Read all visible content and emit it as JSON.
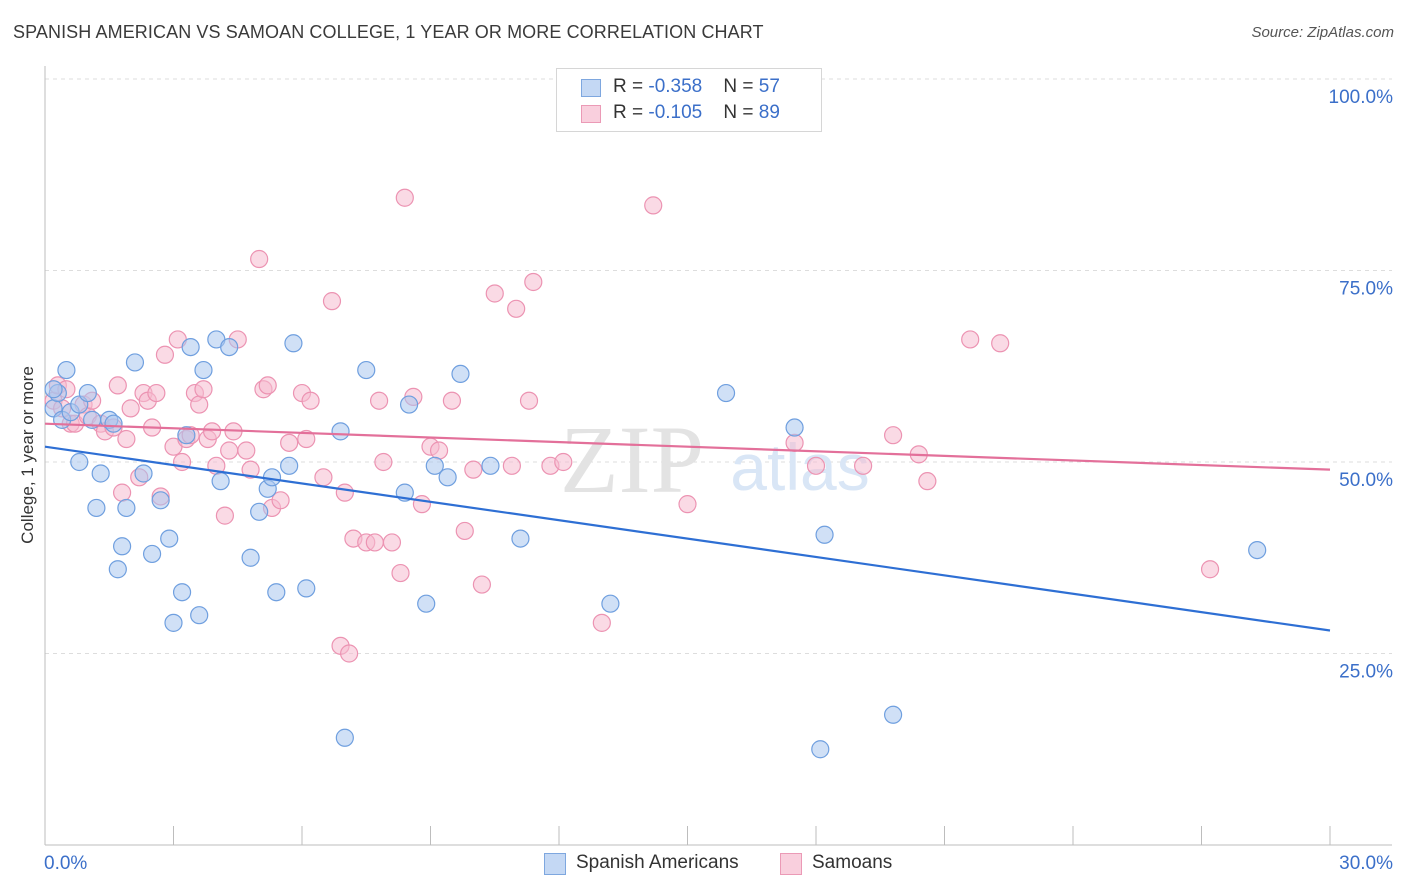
{
  "header": {
    "title": "SPANISH AMERICAN VS SAMOAN COLLEGE, 1 YEAR OR MORE CORRELATION CHART",
    "source": "Source: ZipAtlas.com"
  },
  "watermark": {
    "zip": "ZIP",
    "atlas": "atlas"
  },
  "legend": {
    "rows": [
      {
        "r_label": "R = ",
        "r_value": "-0.358",
        "n_label": "N = ",
        "n_value": "57"
      },
      {
        "r_label": "R = ",
        "r_value": "-0.105",
        "n_label": "N = ",
        "n_value": "89"
      }
    ]
  },
  "bottom_legend": {
    "series1": "Spanish Americans",
    "series2": "Samoans"
  },
  "colors": {
    "blue_fill": "#a9c6ee",
    "blue_stroke": "#6f9fdf",
    "blue_line": "#2e6fd4",
    "pink_fill": "#f6bcd0",
    "pink_stroke": "#ec93b2",
    "pink_line": "#e3709a",
    "axis_text": "#3b6fc9",
    "grid": "#dddddd"
  },
  "chart_data": {
    "type": "scatter",
    "title": "SPANISH AMERICAN VS SAMOAN COLLEGE, 1 YEAR OR MORE CORRELATION CHART",
    "xlabel": "",
    "ylabel": "College, 1 year or more",
    "xlim": [
      0,
      30
    ],
    "ylim": [
      0,
      105
    ],
    "x_tick_labels": [
      "0.0%",
      "30.0%"
    ],
    "y_ticks": [
      25,
      50,
      75,
      100
    ],
    "y_tick_labels": [
      "25.0%",
      "50.0%",
      "75.0%",
      "100.0%"
    ],
    "legend_position": "top-center",
    "series": [
      {
        "name": "Spanish Americans",
        "r": -0.358,
        "n": 57,
        "trend": {
          "x": [
            0,
            30
          ],
          "y": [
            52.0,
            28.0
          ]
        },
        "points": [
          [
            0.2,
            57.0
          ],
          [
            0.3,
            59.0
          ],
          [
            0.4,
            55.5
          ],
          [
            0.5,
            62.0
          ],
          [
            0.6,
            56.5
          ],
          [
            0.8,
            57.5
          ],
          [
            0.8,
            50.0
          ],
          [
            1.0,
            59.0
          ],
          [
            1.1,
            55.5
          ],
          [
            1.2,
            44.0
          ],
          [
            1.3,
            48.5
          ],
          [
            1.5,
            55.5
          ],
          [
            1.6,
            55.0
          ],
          [
            1.7,
            36.0
          ],
          [
            1.8,
            39.0
          ],
          [
            1.9,
            44.0
          ],
          [
            2.1,
            63.0
          ],
          [
            2.3,
            48.5
          ],
          [
            2.5,
            38.0
          ],
          [
            2.7,
            45.0
          ],
          [
            2.9,
            40.0
          ],
          [
            3.0,
            29.0
          ],
          [
            3.2,
            33.0
          ],
          [
            3.3,
            53.5
          ],
          [
            3.4,
            65.0
          ],
          [
            3.6,
            30.0
          ],
          [
            3.7,
            62.0
          ],
          [
            4.0,
            66.0
          ],
          [
            4.1,
            47.5
          ],
          [
            4.3,
            65.0
          ],
          [
            4.8,
            37.5
          ],
          [
            5.0,
            43.5
          ],
          [
            5.2,
            46.5
          ],
          [
            5.3,
            48.0
          ],
          [
            5.4,
            33.0
          ],
          [
            5.7,
            49.5
          ],
          [
            5.8,
            65.5
          ],
          [
            6.1,
            33.5
          ],
          [
            6.9,
            54.0
          ],
          [
            7.0,
            14.0
          ],
          [
            7.5,
            62.0
          ],
          [
            8.4,
            46.0
          ],
          [
            8.5,
            57.5
          ],
          [
            8.9,
            31.5
          ],
          [
            9.1,
            49.5
          ],
          [
            9.4,
            48.0
          ],
          [
            9.7,
            61.5
          ],
          [
            10.4,
            49.5
          ],
          [
            11.1,
            40.0
          ],
          [
            13.2,
            31.5
          ],
          [
            15.9,
            59.0
          ],
          [
            17.5,
            54.5
          ],
          [
            18.1,
            12.5
          ],
          [
            18.2,
            40.5
          ],
          [
            19.8,
            17.0
          ],
          [
            28.3,
            38.5
          ],
          [
            0.2,
            59.5
          ]
        ]
      },
      {
        "name": "Samoans",
        "r": -0.105,
        "n": 89,
        "trend": {
          "x": [
            0,
            30
          ],
          "y": [
            55.0,
            49.0
          ]
        },
        "points": [
          [
            0.2,
            58.0
          ],
          [
            0.3,
            60.0
          ],
          [
            0.4,
            57.0
          ],
          [
            0.5,
            59.5
          ],
          [
            0.6,
            55.0
          ],
          [
            0.7,
            55.0
          ],
          [
            0.9,
            57.5
          ],
          [
            1.0,
            56.0
          ],
          [
            1.1,
            58.0
          ],
          [
            1.3,
            55.0
          ],
          [
            1.4,
            54.0
          ],
          [
            1.6,
            54.5
          ],
          [
            1.7,
            60.0
          ],
          [
            1.8,
            46.0
          ],
          [
            1.9,
            53.0
          ],
          [
            2.0,
            57.0
          ],
          [
            2.2,
            48.0
          ],
          [
            2.3,
            59.0
          ],
          [
            2.4,
            58.0
          ],
          [
            2.5,
            54.5
          ],
          [
            2.6,
            59.0
          ],
          [
            2.7,
            45.5
          ],
          [
            2.8,
            64.0
          ],
          [
            3.0,
            52.0
          ],
          [
            3.1,
            66.0
          ],
          [
            3.2,
            50.0
          ],
          [
            3.3,
            53.0
          ],
          [
            3.4,
            53.5
          ],
          [
            3.5,
            59.0
          ],
          [
            3.6,
            57.5
          ],
          [
            3.7,
            59.5
          ],
          [
            3.8,
            53.0
          ],
          [
            3.9,
            54.0
          ],
          [
            4.0,
            49.5
          ],
          [
            4.2,
            43.0
          ],
          [
            4.3,
            51.5
          ],
          [
            4.4,
            54.0
          ],
          [
            4.5,
            66.0
          ],
          [
            4.7,
            51.5
          ],
          [
            4.8,
            49.0
          ],
          [
            5.0,
            76.5
          ],
          [
            5.1,
            59.5
          ],
          [
            5.2,
            60.0
          ],
          [
            5.3,
            44.0
          ],
          [
            5.5,
            45.0
          ],
          [
            5.7,
            52.5
          ],
          [
            6.0,
            59.0
          ],
          [
            6.1,
            53.0
          ],
          [
            6.2,
            58.0
          ],
          [
            6.5,
            48.0
          ],
          [
            6.7,
            71.0
          ],
          [
            6.9,
            26.0
          ],
          [
            7.0,
            46.0
          ],
          [
            7.1,
            25.0
          ],
          [
            7.2,
            40.0
          ],
          [
            7.5,
            39.5
          ],
          [
            7.7,
            39.5
          ],
          [
            7.8,
            58.0
          ],
          [
            7.9,
            50.0
          ],
          [
            8.1,
            39.5
          ],
          [
            8.3,
            35.5
          ],
          [
            8.4,
            84.5
          ],
          [
            8.6,
            58.5
          ],
          [
            8.8,
            44.5
          ],
          [
            9.0,
            52.0
          ],
          [
            9.2,
            51.5
          ],
          [
            9.5,
            58.0
          ],
          [
            9.8,
            41.0
          ],
          [
            10.0,
            49.0
          ],
          [
            10.2,
            34.0
          ],
          [
            10.5,
            72.0
          ],
          [
            10.9,
            49.5
          ],
          [
            11.0,
            70.0
          ],
          [
            11.3,
            58.0
          ],
          [
            11.4,
            73.5
          ],
          [
            11.8,
            49.5
          ],
          [
            12.1,
            50.0
          ],
          [
            13.0,
            29.0
          ],
          [
            14.2,
            83.5
          ],
          [
            15.0,
            44.5
          ],
          [
            17.5,
            52.5
          ],
          [
            18.0,
            49.5
          ],
          [
            19.1,
            49.5
          ],
          [
            19.8,
            53.5
          ],
          [
            20.4,
            51.0
          ],
          [
            20.6,
            47.5
          ],
          [
            21.6,
            66.0
          ],
          [
            22.3,
            65.5
          ],
          [
            27.2,
            36.0
          ]
        ]
      }
    ]
  }
}
